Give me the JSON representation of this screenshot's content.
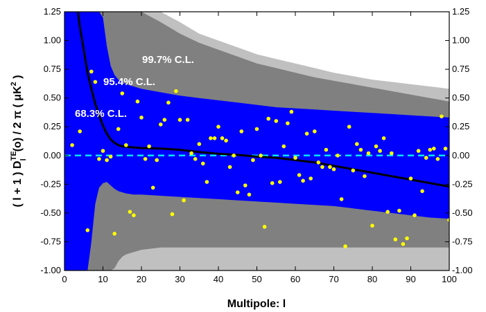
{
  "chart_data": {
    "type": "scatter",
    "xlabel": "Multipole: l",
    "ylabel_parts": {
      "pre": "( l + 1 ) D",
      "sup": "TE",
      "sub": "l",
      "mid": "(o) / 2 π  ( μK",
      "sup2": "2",
      "post": " )"
    },
    "xlim": [
      0,
      100
    ],
    "ylim": [
      -1.0,
      1.25
    ],
    "x_ticks": [
      0,
      10,
      20,
      30,
      40,
      50,
      60,
      70,
      80,
      90,
      100
    ],
    "y_ticks": [
      "-1.00",
      "-0.75",
      "-0.50",
      "-0.25",
      "0.00",
      "0.25",
      "0.50",
      "0.75",
      "1.00",
      "1.25"
    ],
    "band_labels": {
      "c997": "99.7% C.L.",
      "c954": "95.4% C.L.",
      "c683": "68.3% C.L."
    },
    "colors": {
      "band_997": "#c0c0c0",
      "band_954": "#808080",
      "band_683": "#0000ff",
      "model_line": "#000000",
      "zero_line": "#00e5ff",
      "points": "#ffff00"
    },
    "bands": {
      "x": [
        2,
        3,
        4,
        5,
        6,
        7,
        8,
        9,
        10,
        11,
        12,
        13,
        14,
        15,
        16,
        18,
        20,
        25,
        30,
        35,
        40,
        45,
        50,
        55,
        60,
        65,
        70,
        75,
        80,
        85,
        90,
        95,
        100
      ],
      "c683_upper": [
        1.25,
        1.25,
        1.25,
        1.25,
        1.25,
        1.25,
        1.25,
        1.25,
        1.25,
        1.25,
        1.25,
        1.25,
        1.25,
        1.25,
        1.25,
        1.25,
        1.25,
        1.25,
        1.25,
        1.25,
        1.25,
        1.25,
        1.25,
        1.25,
        1.25,
        1.25,
        1.25,
        1.25,
        1.25,
        1.25,
        1.25,
        1.25,
        1.25
      ],
      "c683_lower": [
        -1.0,
        -1.0,
        -1.0,
        -1.0,
        -1.0,
        -1.0,
        -1.0,
        -1.0,
        -1.0,
        -1.0,
        -1.0,
        -1.0,
        -1.0,
        -1.0,
        -1.0,
        -1.0,
        -1.0,
        -1.0,
        -1.0,
        -1.0,
        -1.0,
        -1.0,
        -1.0,
        -1.0,
        -1.0,
        -1.0,
        -1.0,
        -1.0,
        -1.0,
        -1.0,
        -1.0,
        -1.0,
        -1.0
      ],
      "c954_upper": [
        1.25,
        1.25,
        1.25,
        1.25,
        1.25,
        1.25,
        1.25,
        1.25,
        1.25,
        1.25,
        1.25,
        1.25,
        1.25,
        1.25,
        1.25,
        1.25,
        1.25,
        1.25,
        1.25,
        1.25,
        1.25,
        1.25,
        1.25,
        1.25,
        1.25,
        1.25,
        1.25,
        1.25,
        1.25,
        1.25,
        1.25,
        1.25,
        1.25
      ],
      "c954_lower": [
        -1.0,
        -1.0,
        -1.0,
        -1.0,
        -1.0,
        -1.0,
        -1.0,
        -1.0,
        -1.0,
        -1.0,
        -1.0,
        -1.0,
        -1.0,
        -1.0,
        -1.0,
        -1.0,
        -1.0,
        -1.0,
        -1.0,
        -1.0,
        -1.0,
        -1.0,
        -1.0,
        -1.0,
        -1.0,
        -1.0,
        -1.0,
        -1.0,
        -1.0,
        -1.0,
        -1.0,
        -1.0,
        -1.0
      ],
      "c997_upper": [
        1.25,
        1.25,
        1.25,
        1.25,
        1.25,
        1.25,
        1.25,
        1.25,
        1.25,
        1.25,
        1.25,
        1.25,
        1.25,
        1.25,
        1.25,
        1.25,
        1.25,
        1.25,
        1.25,
        1.25,
        1.25,
        1.25,
        1.25,
        1.25,
        1.25,
        1.25,
        1.25,
        1.25,
        1.25,
        1.25,
        1.25,
        1.25,
        1.25
      ],
      "c997_lower": [
        -1.0,
        -1.0,
        -1.0,
        -1.0,
        -1.0,
        -1.0,
        -1.0,
        -1.0,
        -1.0,
        -1.0,
        -1.0,
        -1.0,
        -1.0,
        -1.0,
        -1.0,
        -1.0,
        -1.0,
        -1.0,
        -1.0,
        -1.0,
        -1.0,
        -1.0,
        -1.0,
        -1.0,
        -1.0,
        -1.0,
        -1.0,
        -1.0,
        -1.0,
        -1.0,
        -1.0,
        -1.0,
        -1.0
      ]
    },
    "band_profiles": {
      "x": [
        2,
        3,
        4,
        5,
        6,
        7,
        8,
        9,
        10,
        11,
        12,
        13,
        14,
        15,
        16,
        18,
        20,
        25,
        30,
        35,
        40,
        45,
        50,
        55,
        60,
        65,
        70,
        75,
        80,
        85,
        90,
        95,
        100
      ],
      "c683_upper": [
        1.25,
        1.25,
        1.25,
        1.25,
        1.25,
        1.25,
        1.25,
        1.25,
        1.25,
        1.25,
        1.25,
        1.25,
        1.25,
        1.25,
        1.25,
        1.25,
        1.25,
        1.25,
        1.25,
        1.25,
        1.25,
        1.25,
        1.25,
        1.25,
        1.25,
        1.25,
        1.25,
        1.25,
        1.25,
        1.25,
        1.25,
        1.25,
        1.25
      ],
      "c954_upper": [
        1.25,
        1.25,
        1.25,
        1.25,
        1.25,
        1.25,
        1.25,
        1.25,
        1.2,
        0.95,
        0.78,
        0.7,
        0.66,
        0.64,
        0.62,
        0.6,
        0.58,
        0.55,
        0.52,
        0.5,
        0.48,
        0.46,
        0.44,
        0.42,
        0.41,
        0.4,
        0.39,
        0.38,
        0.37,
        0.36,
        0.35,
        0.34,
        0.33
      ],
      "c997_upper": [
        1.25,
        1.25,
        1.25,
        1.25,
        1.25,
        1.25,
        1.25,
        1.25,
        1.25,
        1.25,
        1.25,
        1.25,
        1.25,
        1.25,
        1.25,
        1.25,
        1.25,
        1.25,
        1.16,
        1.06,
        1.0,
        0.94,
        0.88,
        0.84,
        0.8,
        0.76,
        0.72,
        0.69,
        0.66,
        0.64,
        0.62,
        0.6,
        0.58
      ],
      "c683_lower": [
        -1.0,
        -1.0,
        -1.0,
        -1.0,
        -1.0,
        -1.0,
        -1.0,
        -1.0,
        -1.0,
        -1.0,
        -1.0,
        -1.0,
        -1.0,
        -1.0,
        -1.0,
        -1.0,
        -1.0,
        -1.0,
        -1.0,
        -1.0,
        -1.0,
        -1.0,
        -1.0,
        -1.0,
        -1.0,
        -1.0,
        -1.0,
        -1.0,
        -1.0,
        -1.0,
        -1.0,
        -1.0,
        -1.0
      ],
      "c954_lower": [
        -1.0,
        -1.0,
        -1.0,
        -1.0,
        -1.0,
        -0.75,
        -0.42,
        -0.28,
        -0.24,
        -0.23,
        -0.26,
        -0.29,
        -0.31,
        -0.32,
        -0.33,
        -0.34,
        -0.34,
        -0.35,
        -0.36,
        -0.37,
        -0.38,
        -0.39,
        -0.4,
        -0.41,
        -0.42,
        -0.43,
        -0.44,
        -0.46,
        -0.48,
        -0.5,
        -0.52,
        -0.54,
        -0.55
      ],
      "c997_lower": [
        -1.0,
        -1.0,
        -1.0,
        -1.0,
        -1.0,
        -1.0,
        -1.0,
        -1.0,
        -1.0,
        -1.0,
        -1.0,
        -0.98,
        -0.92,
        -0.88,
        -0.86,
        -0.84,
        -0.82,
        -0.8,
        -0.8,
        -0.8,
        -0.8,
        -0.8,
        -0.8,
        -0.8,
        -0.8,
        -0.8,
        -0.8,
        -0.8,
        -0.8,
        -0.8,
        -0.8,
        -0.8,
        -0.8
      ]
    },
    "grey_profiles": {
      "x": [
        2,
        3,
        4,
        5,
        6,
        7,
        8,
        9,
        10,
        11,
        12,
        13,
        14,
        15,
        16,
        18,
        20,
        25,
        30,
        35,
        40,
        45,
        50,
        55,
        60,
        65,
        70,
        75,
        80,
        85,
        90,
        95,
        100
      ],
      "light_upper": [
        1.25,
        1.25,
        1.25,
        1.25,
        1.25,
        1.25,
        1.25,
        1.25,
        1.25,
        1.25,
        1.25,
        1.25,
        1.25,
        1.25,
        1.25,
        1.25,
        1.25,
        1.25,
        1.16,
        1.06,
        1.0,
        0.94,
        0.88,
        0.84,
        0.8,
        0.76,
        0.72,
        0.69,
        0.66,
        0.64,
        0.62,
        0.6,
        0.58
      ],
      "dark_upper": [
        1.25,
        1.25,
        1.25,
        1.25,
        1.25,
        1.25,
        1.25,
        1.25,
        1.25,
        1.25,
        1.25,
        1.25,
        1.25,
        1.25,
        1.25,
        1.25,
        1.25,
        1.16,
        1.06,
        0.98,
        0.92,
        0.86,
        0.8,
        0.76,
        0.72,
        0.68,
        0.65,
        0.62,
        0.59,
        0.56,
        0.53,
        0.5,
        0.47
      ],
      "blue_upper": [
        1.25,
        1.25,
        1.25,
        1.25,
        1.25,
        1.25,
        1.25,
        1.25,
        1.2,
        0.95,
        0.78,
        0.7,
        0.66,
        0.64,
        0.62,
        0.6,
        0.58,
        0.55,
        0.52,
        0.5,
        0.48,
        0.46,
        0.44,
        0.42,
        0.41,
        0.4,
        0.39,
        0.38,
        0.37,
        0.36,
        0.35,
        0.34,
        0.33
      ],
      "blue_lower": [
        -1.0,
        -1.0,
        -1.0,
        -1.0,
        -1.0,
        -0.75,
        -0.42,
        -0.28,
        -0.24,
        -0.23,
        -0.26,
        -0.29,
        -0.31,
        -0.32,
        -0.33,
        -0.34,
        -0.34,
        -0.35,
        -0.36,
        -0.37,
        -0.38,
        -0.39,
        -0.4,
        -0.41,
        -0.42,
        -0.43,
        -0.44,
        -0.46,
        -0.48,
        -0.5,
        -0.52,
        -0.54,
        -0.55
      ],
      "dark_lower": [
        -1.0,
        -1.0,
        -1.0,
        -1.0,
        -1.0,
        -1.0,
        -1.0,
        -1.0,
        -1.0,
        -1.0,
        -1.0,
        -0.98,
        -0.92,
        -0.88,
        -0.86,
        -0.84,
        -0.82,
        -0.8,
        -0.8,
        -0.8,
        -0.8,
        -0.8,
        -0.8,
        -0.8,
        -0.8,
        -0.8,
        -0.8,
        -0.8,
        -0.8,
        -0.8,
        -0.8,
        -0.8,
        -0.8
      ],
      "light_lower": [
        -1.0,
        -1.0,
        -1.0,
        -1.0,
        -1.0,
        -1.0,
        -1.0,
        -1.0,
        -1.0,
        -1.0,
        -1.0,
        -1.0,
        -1.0,
        -1.0,
        -1.0,
        -1.0,
        -1.0,
        -1.0,
        -1.0,
        -1.0,
        -1.0,
        -1.0,
        -1.0,
        -1.0,
        -1.0,
        -1.0,
        -1.0,
        -1.0,
        -1.0,
        -1.0,
        -1.0,
        -1.0,
        -1.0
      ]
    },
    "model_line": {
      "x": [
        3.5,
        4,
        5,
        6,
        7,
        8,
        9,
        10,
        11,
        12,
        13,
        14,
        15,
        16,
        18,
        20,
        25,
        30,
        35,
        40,
        45,
        50,
        55,
        60,
        65,
        70,
        75,
        80,
        85,
        90,
        95,
        100
      ],
      "y": [
        1.25,
        1.12,
        0.92,
        0.72,
        0.58,
        0.45,
        0.35,
        0.26,
        0.19,
        0.14,
        0.11,
        0.09,
        0.08,
        0.075,
        0.07,
        0.065,
        0.06,
        0.05,
        0.03,
        0.015,
        0.005,
        -0.01,
        -0.02,
        -0.04,
        -0.06,
        -0.09,
        -0.12,
        -0.15,
        -0.18,
        -0.21,
        -0.24,
        -0.27
      ]
    },
    "zero_line_y": 0,
    "points": [
      [
        2,
        0.09
      ],
      [
        4,
        0.21
      ],
      [
        6,
        -0.65
      ],
      [
        7,
        0.73
      ],
      [
        8,
        0.64
      ],
      [
        9,
        -0.03
      ],
      [
        10,
        0.04
      ],
      [
        11,
        -0.04
      ],
      [
        12,
        -0.01
      ],
      [
        13,
        -0.68
      ],
      [
        14,
        0.23
      ],
      [
        15,
        0.54
      ],
      [
        16,
        0.09
      ],
      [
        17,
        -0.49
      ],
      [
        18,
        -0.52
      ],
      [
        19,
        0.47
      ],
      [
        20,
        0.33
      ],
      [
        21,
        -0.03
      ],
      [
        22,
        0.08
      ],
      [
        23,
        -0.28
      ],
      [
        24,
        -0.04
      ],
      [
        25,
        0.27
      ],
      [
        26,
        0.31
      ],
      [
        27,
        0.46
      ],
      [
        28,
        -0.51
      ],
      [
        29,
        0.56
      ],
      [
        30,
        0.31
      ],
      [
        31,
        -0.39
      ],
      [
        32,
        0.31
      ],
      [
        33,
        0.02
      ],
      [
        34,
        -0.03
      ],
      [
        35,
        0.1
      ],
      [
        36,
        -0.07
      ],
      [
        37,
        -0.23
      ],
      [
        38,
        0.15
      ],
      [
        39,
        0.15
      ],
      [
        40,
        0.25
      ],
      [
        41,
        0.15
      ],
      [
        42,
        0.13
      ],
      [
        43,
        -0.1
      ],
      [
        44,
        0.0
      ],
      [
        45,
        -0.32
      ],
      [
        46,
        0.21
      ],
      [
        47,
        -0.26
      ],
      [
        48,
        -0.34
      ],
      [
        49,
        -0.04
      ],
      [
        50,
        0.23
      ],
      [
        51,
        0.0
      ],
      [
        52,
        -0.62
      ],
      [
        53,
        0.32
      ],
      [
        54,
        -0.24
      ],
      [
        55,
        0.3
      ],
      [
        56,
        -0.23
      ],
      [
        57,
        0.08
      ],
      [
        58,
        0.28
      ],
      [
        59,
        0.38
      ],
      [
        60,
        -0.02
      ],
      [
        61,
        -0.17
      ],
      [
        62,
        -0.22
      ],
      [
        63,
        0.19
      ],
      [
        64,
        -0.2
      ],
      [
        65,
        0.21
      ],
      [
        66,
        -0.06
      ],
      [
        67,
        -0.1
      ],
      [
        68,
        0.05
      ],
      [
        69,
        -0.1
      ],
      [
        70,
        -0.12
      ],
      [
        71,
        0.0
      ],
      [
        72,
        -0.38
      ],
      [
        73,
        -0.79
      ],
      [
        74,
        0.25
      ],
      [
        75,
        -0.13
      ],
      [
        76,
        0.1
      ],
      [
        77,
        0.05
      ],
      [
        78,
        -0.18
      ],
      [
        79,
        0.02
      ],
      [
        80,
        -0.61
      ],
      [
        81,
        0.08
      ],
      [
        82,
        0.04
      ],
      [
        83,
        0.15
      ],
      [
        84,
        -0.49
      ],
      [
        85,
        0.02
      ],
      [
        86,
        -0.73
      ],
      [
        87,
        -0.48
      ],
      [
        88,
        -0.77
      ],
      [
        89,
        -0.72
      ],
      [
        90,
        -0.2
      ],
      [
        91,
        -0.52
      ],
      [
        92,
        0.04
      ],
      [
        93,
        -0.31
      ],
      [
        94,
        -0.02
      ],
      [
        95,
        0.05
      ],
      [
        96,
        0.06
      ],
      [
        97,
        -0.03
      ],
      [
        98,
        0.34
      ],
      [
        99,
        0.06
      ],
      [
        100,
        -0.56
      ]
    ]
  }
}
